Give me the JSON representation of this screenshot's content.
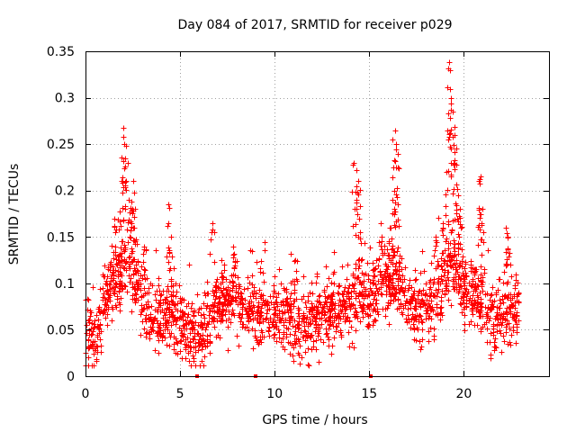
{
  "chart_data": {
    "type": "scatter",
    "title": "Day 084 of 2017, SRMTID for receiver p029",
    "xlabel": "GPS time / hours",
    "ylabel": "SRMTID / TECUs",
    "xlim": [
      0,
      24.5
    ],
    "ylim": [
      0,
      0.35
    ],
    "xticks": [
      0,
      5,
      10,
      15,
      20
    ],
    "xtick_labels": [
      "0",
      "5",
      "10",
      "15",
      "20"
    ],
    "yticks": [
      0,
      0.05,
      0.1,
      0.15,
      0.2,
      0.25,
      0.3,
      0.35
    ],
    "ytick_labels": [
      "0",
      "0.05",
      "0.1",
      "0.15",
      "0.2",
      "0.25",
      "0.3",
      "0.35"
    ],
    "grid": true,
    "marker": "plus",
    "color": "#ff0000",
    "profile": [
      [
        0.0,
        0.055
      ],
      [
        0.5,
        0.04
      ],
      [
        1.0,
        0.08
      ],
      [
        1.5,
        0.1
      ],
      [
        2.0,
        0.12
      ],
      [
        2.5,
        0.12
      ],
      [
        3.0,
        0.08
      ],
      [
        3.5,
        0.06
      ],
      [
        4.0,
        0.065
      ],
      [
        4.5,
        0.07
      ],
      [
        5.0,
        0.06
      ],
      [
        5.5,
        0.05
      ],
      [
        6.0,
        0.045
      ],
      [
        6.5,
        0.06
      ],
      [
        7.0,
        0.075
      ],
      [
        7.5,
        0.08
      ],
      [
        8.0,
        0.08
      ],
      [
        8.5,
        0.075
      ],
      [
        9.0,
        0.065
      ],
      [
        9.5,
        0.07
      ],
      [
        10.0,
        0.06
      ],
      [
        10.5,
        0.07
      ],
      [
        11.0,
        0.06
      ],
      [
        11.5,
        0.055
      ],
      [
        12.0,
        0.06
      ],
      [
        12.5,
        0.065
      ],
      [
        13.0,
        0.07
      ],
      [
        13.5,
        0.075
      ],
      [
        14.0,
        0.075
      ],
      [
        14.5,
        0.09
      ],
      [
        15.0,
        0.08
      ],
      [
        15.5,
        0.1
      ],
      [
        16.0,
        0.1
      ],
      [
        16.5,
        0.1
      ],
      [
        17.0,
        0.08
      ],
      [
        17.5,
        0.065
      ],
      [
        18.0,
        0.07
      ],
      [
        18.5,
        0.08
      ],
      [
        19.0,
        0.11
      ],
      [
        19.5,
        0.12
      ],
      [
        20.0,
        0.09
      ],
      [
        20.5,
        0.09
      ],
      [
        21.0,
        0.08
      ],
      [
        21.5,
        0.06
      ],
      [
        22.0,
        0.065
      ],
      [
        22.5,
        0.08
      ],
      [
        22.9,
        0.075
      ]
    ],
    "peaks": [
      [
        1.5,
        0.17
      ],
      [
        1.9,
        0.21
      ],
      [
        2.0,
        0.268
      ],
      [
        2.05,
        0.25
      ],
      [
        2.1,
        0.235
      ],
      [
        2.3,
        0.19
      ],
      [
        2.5,
        0.21
      ],
      [
        2.6,
        0.18
      ],
      [
        3.1,
        0.14
      ],
      [
        4.4,
        0.185
      ],
      [
        4.5,
        0.15
      ],
      [
        6.7,
        0.165
      ],
      [
        7.8,
        0.14
      ],
      [
        11.1,
        0.125
      ],
      [
        14.2,
        0.23
      ],
      [
        14.3,
        0.205
      ],
      [
        14.4,
        0.21
      ],
      [
        14.5,
        0.155
      ],
      [
        15.6,
        0.165
      ],
      [
        16.1,
        0.16
      ],
      [
        16.3,
        0.2
      ],
      [
        16.35,
        0.265
      ],
      [
        16.4,
        0.25
      ],
      [
        16.5,
        0.225
      ],
      [
        18.5,
        0.15
      ],
      [
        18.9,
        0.165
      ],
      [
        19.1,
        0.22
      ],
      [
        19.2,
        0.338
      ],
      [
        19.25,
        0.33
      ],
      [
        19.3,
        0.3
      ],
      [
        19.4,
        0.285
      ],
      [
        19.5,
        0.26
      ],
      [
        19.6,
        0.245
      ],
      [
        19.7,
        0.195
      ],
      [
        19.8,
        0.18
      ],
      [
        20.8,
        0.21
      ],
      [
        20.9,
        0.215
      ],
      [
        21.0,
        0.18
      ],
      [
        22.2,
        0.16
      ],
      [
        22.3,
        0.15
      ]
    ],
    "markers_on_axis": [
      [
        5.9,
        0
      ],
      [
        9.0,
        0
      ],
      [
        15.1,
        0
      ]
    ]
  }
}
